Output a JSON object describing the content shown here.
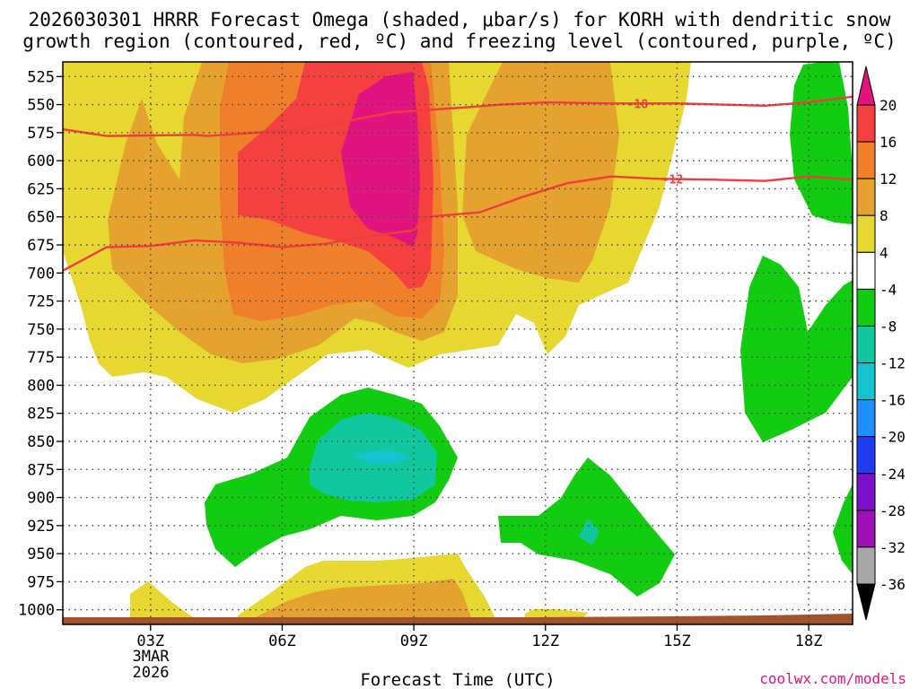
{
  "chart_data": {
    "type": "contour",
    "title_lines": [
      "2026030301 HRRR Forecast Omega (shaded, μbar/s) for KORH with dendritic snow",
      "growth region (contoured, red, ºC) and freezing level (contoured, purple, ºC)"
    ],
    "xlabel": "Forecast Time (UTC)",
    "date_lines": [
      "3MAR",
      "2026"
    ],
    "credit": "coolwx.com/models",
    "x_range_hours": [
      1,
      19
    ],
    "x_ticks": [
      {
        "hour": 3,
        "label": "03Z"
      },
      {
        "hour": 6,
        "label": "06Z"
      },
      {
        "hour": 9,
        "label": "09Z"
      },
      {
        "hour": 12,
        "label": "12Z"
      },
      {
        "hour": 15,
        "label": "15Z"
      },
      {
        "hour": 18,
        "label": "18Z"
      }
    ],
    "y_range_mb": [
      512,
      1013
    ],
    "y_ticks": [
      525,
      550,
      575,
      600,
      625,
      650,
      675,
      700,
      725,
      750,
      775,
      800,
      825,
      850,
      875,
      900,
      925,
      950,
      975,
      1000
    ],
    "colorbar": {
      "labels": [
        "20",
        "16",
        "12",
        "8",
        "4",
        "-4",
        "-8",
        "-12",
        "-16",
        "-20",
        "-24",
        "-28",
        "-32",
        "-36"
      ],
      "colors": [
        "#e0137f",
        "#f54040",
        "#ef7f2a",
        "#e6a22e",
        "#e6d831",
        "#ffffff",
        "#11cc11",
        "#11c7a0",
        "#15c2cf",
        "#1e90ff",
        "#1f3cf0",
        "#7a10c9",
        "#a010b8",
        "#a8a8a8"
      ],
      "top_cap": "#e0137f",
      "bottom_cap": "#000000"
    },
    "contours": [
      {
        "name": "-18",
        "label": "-18",
        "color": "#f03c3c",
        "points": [
          [
            1,
            572
          ],
          [
            2,
            578
          ],
          [
            4,
            577
          ],
          [
            4.3,
            578
          ],
          [
            6.5,
            572
          ],
          [
            8.5,
            557
          ],
          [
            10,
            553
          ],
          [
            11,
            550
          ],
          [
            12,
            548
          ],
          [
            13.5,
            549
          ],
          [
            15,
            549
          ],
          [
            16,
            550
          ],
          [
            17,
            551
          ],
          [
            18,
            548
          ],
          [
            19,
            543
          ]
        ]
      },
      {
        "name": "-12",
        "label": "-12",
        "color": "#f03c3c",
        "points": [
          [
            1,
            698
          ],
          [
            2,
            677
          ],
          [
            3,
            676
          ],
          [
            4,
            671
          ],
          [
            5,
            673
          ],
          [
            6,
            677
          ],
          [
            7,
            674
          ],
          [
            8,
            667
          ],
          [
            9,
            662
          ],
          [
            9.3,
            650
          ],
          [
            10.5,
            646
          ],
          [
            11.5,
            632
          ],
          [
            12.5,
            620
          ],
          [
            13.5,
            614
          ],
          [
            14.5,
            616
          ],
          [
            16,
            617
          ],
          [
            17,
            618
          ],
          [
            18,
            614
          ],
          [
            19,
            617
          ]
        ]
      }
    ]
  }
}
